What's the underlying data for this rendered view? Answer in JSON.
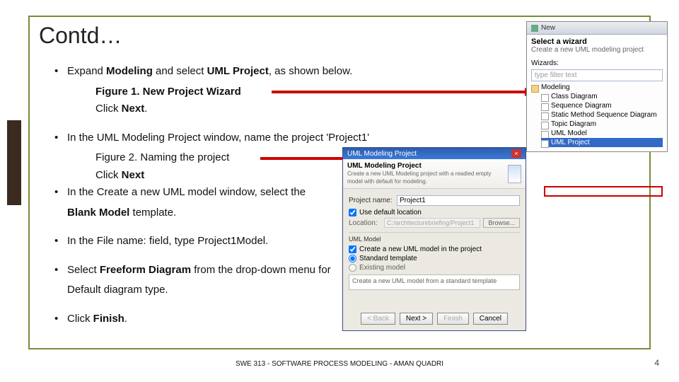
{
  "title": "Contd…",
  "bullets": {
    "b1": "Expand <b>Modeling</b> and select <b>UML Project</b>, as shown below.",
    "b1a": "<b>Figure 1. New Project Wizard</b>",
    "b1b": "Click <b>Next</b>.",
    "b2": "In the UML Modeling Project window, name the project 'Project1'",
    "b2a": "Figure 2. Naming the project",
    "b2b": "Click <b>Next</b>",
    "b3": "In the Create a new UML model window, select the",
    "b3a": "<b>Blank Model</b> template.",
    "b4": "In the File name: field, type Project1Model.",
    "b5": "Select <b>Freeform Diagram</b> from the drop-down menu for",
    "b5a": "Default diagram type.",
    "b6": "Click <b>Finish</b>."
  },
  "wizard": {
    "title": "New",
    "heading": "Select a wizard",
    "subheading": "Create a new UML modeling project",
    "wizards_label": "Wizards:",
    "filter_placeholder": "type filter text",
    "tree": {
      "root": "Modeling",
      "items": [
        "Class Diagram",
        "Sequence Diagram",
        "Static Method Sequence Diagram",
        "Topic Diagram",
        "UML Model",
        "UML Project"
      ]
    }
  },
  "umlDialog": {
    "titlebar": "UML Modeling Project",
    "heading": "UML Modeling Project",
    "desc": "Create a new UML Modeling project with a readied empty model with default for modeling.",
    "project_label": "Project name:",
    "project_value": "Project1",
    "use_default": "Use default location",
    "location_label": "Location:",
    "location_value": "C:/architecturebriefing/Project1",
    "browse": "Browse...",
    "uml_model": "UML Model",
    "create_chk": "Create a new UML model in the project",
    "r1": "Standard template",
    "r2": "Existing model",
    "template_desc": "Create a new UML model from a standard template",
    "buttons": {
      "back": "< Back",
      "next": "Next >",
      "finish": "Finish",
      "cancel": "Cancel"
    }
  },
  "footer": "SWE 313 - SOFTWARE PROCESS MODELING - AMAN QUADRI",
  "page": "4"
}
